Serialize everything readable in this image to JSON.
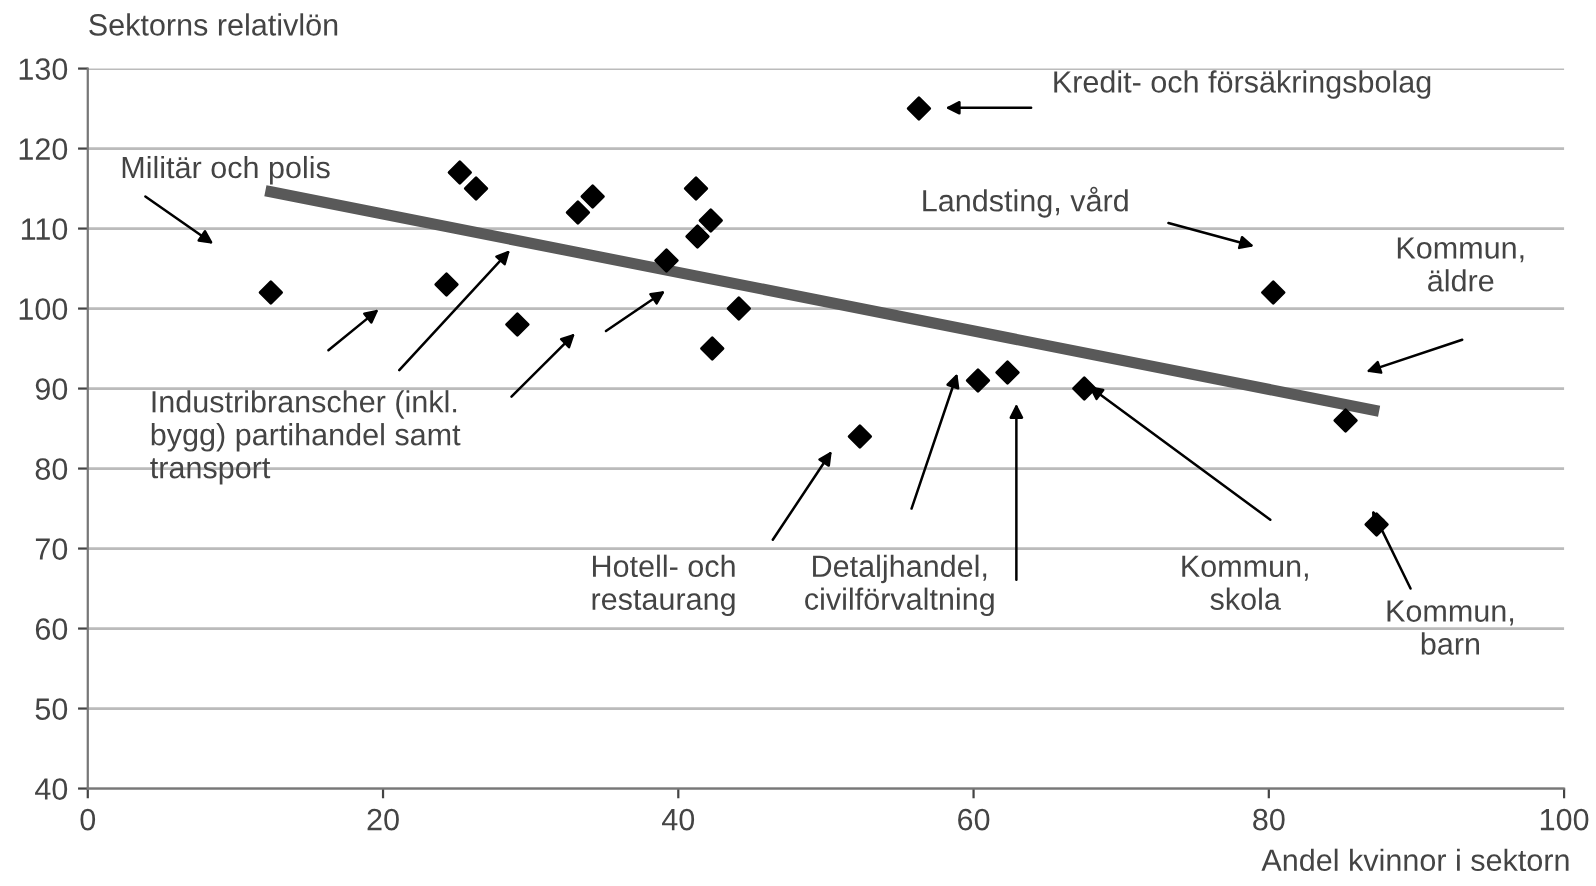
{
  "chart_data": {
    "type": "scatter",
    "ylabel": "Sektorns relativlön",
    "xlabel": "Andel kvinnor i sektorn",
    "xlim": [
      0,
      100
    ],
    "xticks": [
      0,
      20,
      40,
      60,
      80,
      100
    ],
    "ylim": [
      40,
      130
    ],
    "yticks": [
      40,
      50,
      60,
      70,
      80,
      90,
      100,
      110,
      120,
      130
    ],
    "grid": "y",
    "marker": "diamond",
    "series": [
      {
        "color": "#000000",
        "x": [
          12.4,
          25.2,
          26.3,
          24.3,
          29.1,
          33.2,
          34.2,
          41.2,
          42.2,
          41.3,
          39.2,
          44.1,
          42.3,
          56.3,
          80.3,
          60.3,
          62.3,
          67.5,
          85.2,
          87.3,
          52.3
        ],
        "values": [
          102,
          117,
          115,
          103,
          98,
          112,
          114,
          115,
          111,
          109,
          106,
          100,
          95,
          125,
          102,
          91,
          92,
          90,
          86,
          73,
          84
        ]
      },
      {
        "type": "line",
        "color": "#595959",
        "marker": "none",
        "line_style": "solid",
        "x": [
          12.4,
          87.1
        ],
        "values": [
          114.6,
          87.3
        ]
      }
    ],
    "annotations": [
      "Militär och polis",
      {
        "text": "Industribranscher (inkl.\nbygg) partihandel samt\ntransport",
        "x": 28.6,
        "y": 107.3
      },
      "Kredit- och försäkringsbolag",
      "Landsting, vård",
      "Kommun,\näldre",
      "Hotell- och\nrestaurang",
      "Detaljhandel,\ncivilförvaltning",
      {
        "text": "Kommun,\nskola",
        "x": 67.8,
        "y": 90.3
      },
      {
        "text": "Kommun,\nbarn",
        "x": 87.0,
        "y": 74.8
      }
    ]
  }
}
